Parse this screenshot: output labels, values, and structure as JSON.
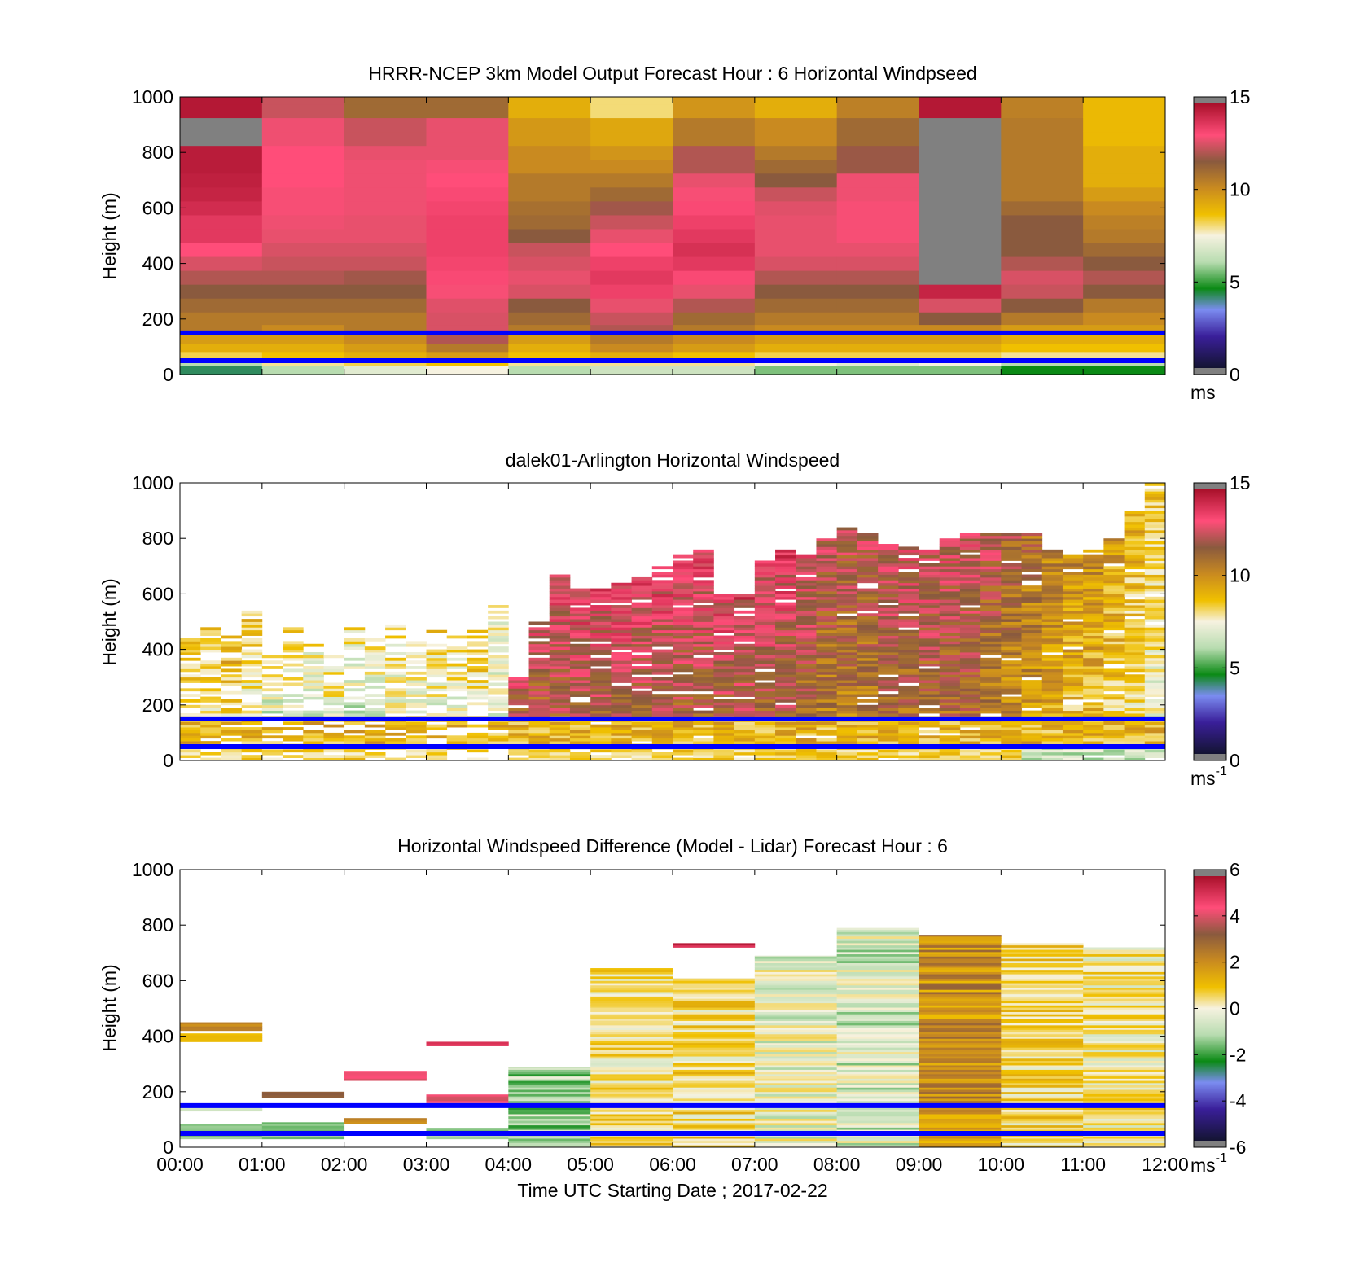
{
  "chart_data": [
    {
      "type": "heatmap",
      "title": "HRRR-NCEP 3km Model Output   Forecast Hour : 6 Horizontal Windpseed",
      "ylabel": "Height (m)",
      "xlabel": "",
      "ylim": [
        0,
        1000
      ],
      "yticks": [
        "0",
        "200",
        "400",
        "600",
        "800",
        "1000"
      ],
      "xlim": [
        "00:00",
        "12:00"
      ],
      "columns": 12,
      "colorbar": {
        "range": [
          0,
          15
        ],
        "ticks": [
          "0",
          "5",
          "10",
          "15"
        ],
        "unit": "ms",
        "unit_sup": ""
      },
      "reference_lines_m": [
        150,
        50
      ],
      "line_color": "#0000ff",
      "profile_heights_m": [
        20,
        45,
        70,
        95,
        125,
        160,
        200,
        250,
        300,
        350,
        400,
        450,
        500,
        550,
        600,
        650,
        700,
        750,
        800,
        850,
        900,
        950,
        1000
      ],
      "values": [
        [
          4,
          6,
          8.5,
          9.5,
          10,
          11,
          11,
          11.5,
          12,
          12.5,
          13,
          13.5,
          14,
          14,
          14.3,
          14.5,
          14.6,
          14.7,
          14.7,
          0,
          0,
          14.8,
          14.8
        ],
        [
          6,
          8,
          9,
          9.5,
          10,
          10.5,
          11,
          11.5,
          12,
          12.5,
          12.8,
          13,
          13.2,
          13.3,
          13.4,
          13.4,
          13.5,
          13.5,
          13.5,
          13.3,
          13.3,
          12.8,
          12.8
        ],
        [
          7,
          8.5,
          9.5,
          10,
          10.5,
          11,
          11,
          11.5,
          12,
          12.3,
          12.8,
          13,
          13.2,
          13.2,
          13.3,
          13.3,
          13.3,
          13.3,
          13.2,
          12.8,
          12.8,
          11.5,
          11.5
        ],
        [
          7.5,
          9,
          10,
          11,
          12.5,
          13,
          13,
          13.1,
          13.4,
          13.6,
          13.7,
          13.8,
          13.8,
          13.8,
          13.7,
          13.6,
          13.5,
          13.4,
          13.2,
          13.2,
          13.2,
          11.5,
          11.5
        ],
        [
          6,
          8,
          9,
          9.5,
          10,
          11,
          11.5,
          12,
          13,
          13.2,
          13,
          12.8,
          12,
          11.5,
          11.3,
          11,
          11,
          10.5,
          10.5,
          10.1,
          10.1,
          9.5,
          9.5
        ],
        [
          6.5,
          8,
          9.5,
          10.5,
          11,
          12.5,
          12.8,
          13.2,
          13.8,
          14,
          13.8,
          13.5,
          13.2,
          12.8,
          12.3,
          11.5,
          11,
          10.5,
          10.2,
          9.7,
          9.7,
          8.2,
          8.2
        ],
        [
          6.5,
          8,
          9,
          10,
          10.5,
          11,
          11.5,
          12.5,
          13.2,
          13.6,
          14,
          14.2,
          14,
          13.8,
          13.6,
          13.4,
          13.2,
          12.5,
          12.5,
          11,
          11,
          10.2,
          10.2
        ],
        [
          5.5,
          7.5,
          8.5,
          9.5,
          10,
          10.5,
          11,
          11.5,
          12,
          12.5,
          13,
          13.2,
          13.2,
          13.2,
          13.1,
          12.8,
          12,
          11.5,
          11,
          10.5,
          10.5,
          9.5,
          9.5
        ],
        [
          5.5,
          7,
          8.5,
          9.5,
          10,
          10.5,
          11,
          11.5,
          12,
          12.5,
          13,
          13.2,
          13.4,
          13.4,
          13.4,
          13.3,
          13.3,
          12.2,
          12.2,
          11.5,
          11.5,
          10.8,
          10.8
        ],
        [
          5.5,
          7.5,
          8.5,
          9.5,
          10,
          10.5,
          12,
          13,
          14.5,
          0,
          0,
          0,
          0,
          0,
          0,
          0,
          0,
          0,
          0,
          0,
          0,
          14.8,
          14.8
        ],
        [
          4.5,
          6,
          8,
          9,
          9.5,
          10,
          11,
          12,
          12.8,
          13,
          12.5,
          12,
          12,
          12,
          11.5,
          11,
          11,
          11,
          11,
          11,
          11,
          10.8,
          10.8
        ],
        [
          4.5,
          6,
          8,
          9,
          9.5,
          10,
          10.5,
          11,
          12,
          12.5,
          12,
          11.5,
          11,
          10.8,
          10.5,
          10,
          9.5,
          9.5,
          9.5,
          9.2,
          9.2,
          9.2,
          9.2
        ]
      ]
    },
    {
      "type": "heatmap",
      "title": "dalek01-Arlington  Horizontal Windspeed",
      "ylabel": "Height (m)",
      "xlabel": "",
      "ylim": [
        0,
        1000
      ],
      "yticks": [
        "0",
        "200",
        "400",
        "600",
        "800",
        "1000"
      ],
      "xlim": [
        "00:00",
        "12:00"
      ],
      "columns": 48,
      "colorbar": {
        "range": [
          0,
          15
        ],
        "ticks": [
          "0",
          "5",
          "10",
          "15"
        ],
        "unit": "ms",
        "unit_sup": "-1"
      },
      "reference_lines_m": [
        150,
        50
      ],
      "line_color": "#0000ff",
      "data_top_m": [
        440,
        480,
        450,
        560,
        400,
        480,
        420,
        380,
        480,
        440,
        500,
        470,
        480,
        450,
        470,
        560,
        300,
        500,
        680,
        620,
        620,
        640,
        660,
        700,
        740,
        760,
        600,
        600,
        720,
        760,
        740,
        800,
        840,
        820,
        780,
        770,
        760,
        800,
        820,
        820,
        820,
        820,
        760,
        740,
        760,
        800,
        900,
        1000
      ],
      "mean_speed_ms": [
        9,
        9,
        9.5,
        9,
        8,
        8.5,
        8,
        8.5,
        8,
        8,
        8.5,
        8.5,
        8.5,
        8.5,
        9,
        8,
        13,
        13,
        13.5,
        13.5,
        13.5,
        13.5,
        13.5,
        13.5,
        13.5,
        13.5,
        13.5,
        13.5,
        13.5,
        13.5,
        13,
        12.5,
        12.5,
        12.5,
        13,
        13,
        13,
        13,
        13,
        12.5,
        12,
        11.5,
        11,
        10.5,
        10.5,
        10,
        9.5,
        9
      ]
    },
    {
      "type": "heatmap",
      "title": "Horizontal Windspeed Difference (Model - Lidar) Forecast Hour : 6",
      "ylabel": "Height (m)",
      "xlabel": "Time UTC  Starting Date ; 2017-02-22",
      "ylim": [
        0,
        1000
      ],
      "yticks": [
        "0",
        "200",
        "400",
        "600",
        "800",
        "1000"
      ],
      "xticks": [
        "00:00",
        "01:00",
        "02:00",
        "03:00",
        "04:00",
        "05:00",
        "06:00",
        "07:00",
        "08:00",
        "09:00",
        "10:00",
        "11:00",
        "12:00"
      ],
      "columns": 12,
      "colorbar": {
        "range": [
          -6,
          6
        ],
        "ticks": [
          "-6",
          "-4",
          "-2",
          "0",
          "2",
          "4",
          "6"
        ],
        "unit": "ms",
        "unit_sup": "-1"
      },
      "reference_lines_m": [
        150,
        50
      ],
      "line_color": "#0000ff",
      "segments": [
        {
          "hour": 0,
          "bottom_m": 380,
          "top_m": 410,
          "value": 1.5
        },
        {
          "hour": 0,
          "bottom_m": 420,
          "top_m": 450,
          "value": 2.5
        },
        {
          "hour": 0,
          "bottom_m": 130,
          "top_m": 145,
          "value": -0.5
        },
        {
          "hour": 0,
          "bottom_m": 30,
          "top_m": 85,
          "value": -1.5
        },
        {
          "hour": 1,
          "bottom_m": 180,
          "top_m": 200,
          "value": 3.5
        },
        {
          "hour": 1,
          "bottom_m": 30,
          "top_m": 90,
          "value": -1.5
        },
        {
          "hour": 2,
          "bottom_m": 240,
          "top_m": 275,
          "value": 4.5
        },
        {
          "hour": 2,
          "bottom_m": 85,
          "top_m": 105,
          "value": 2.5
        },
        {
          "hour": 3,
          "bottom_m": 365,
          "top_m": 380,
          "value": 5.5
        },
        {
          "hour": 3,
          "bottom_m": 160,
          "top_m": 190,
          "value": 4.5
        },
        {
          "hour": 3,
          "bottom_m": 30,
          "top_m": 70,
          "value": -1.5
        },
        {
          "hour": 4,
          "bottom_m": 0,
          "top_m": 290,
          "value": -1.2
        },
        {
          "hour": 5,
          "bottom_m": 0,
          "top_m": 645,
          "value": 0.5
        },
        {
          "hour": 6,
          "bottom_m": 720,
          "top_m": 735,
          "value": 5.5
        },
        {
          "hour": 6,
          "bottom_m": 0,
          "top_m": 610,
          "value": 0.6
        },
        {
          "hour": 7,
          "bottom_m": 0,
          "top_m": 690,
          "value": -0.3
        },
        {
          "hour": 8,
          "bottom_m": 0,
          "top_m": 790,
          "value": -0.6
        },
        {
          "hour": 9,
          "bottom_m": 0,
          "top_m": 765,
          "value": 2.3
        },
        {
          "hour": 10,
          "bottom_m": 0,
          "top_m": 735,
          "value": 0.6
        },
        {
          "hour": 11,
          "bottom_m": 0,
          "top_m": 720,
          "value": 0.3
        }
      ]
    }
  ],
  "colormap_speed": [
    "#141432",
    "#3a1f9a",
    "#7b8cf0",
    "#0b8a15",
    "#b8dcb0",
    "#f6f2e0",
    "#f0c000",
    "#c98a20",
    "#8a5a3e",
    "#ff4d79",
    "#a8102a"
  ],
  "colormap_diff": [
    "#141432",
    "#3a1f9a",
    "#7b8cf0",
    "#0b8a15",
    "#b8dcb0",
    "#f6f2e0",
    "#f0c000",
    "#c98a20",
    "#8a5a3e",
    "#ff4d79",
    "#a8102a"
  ],
  "colormap_end_color": "#808080"
}
